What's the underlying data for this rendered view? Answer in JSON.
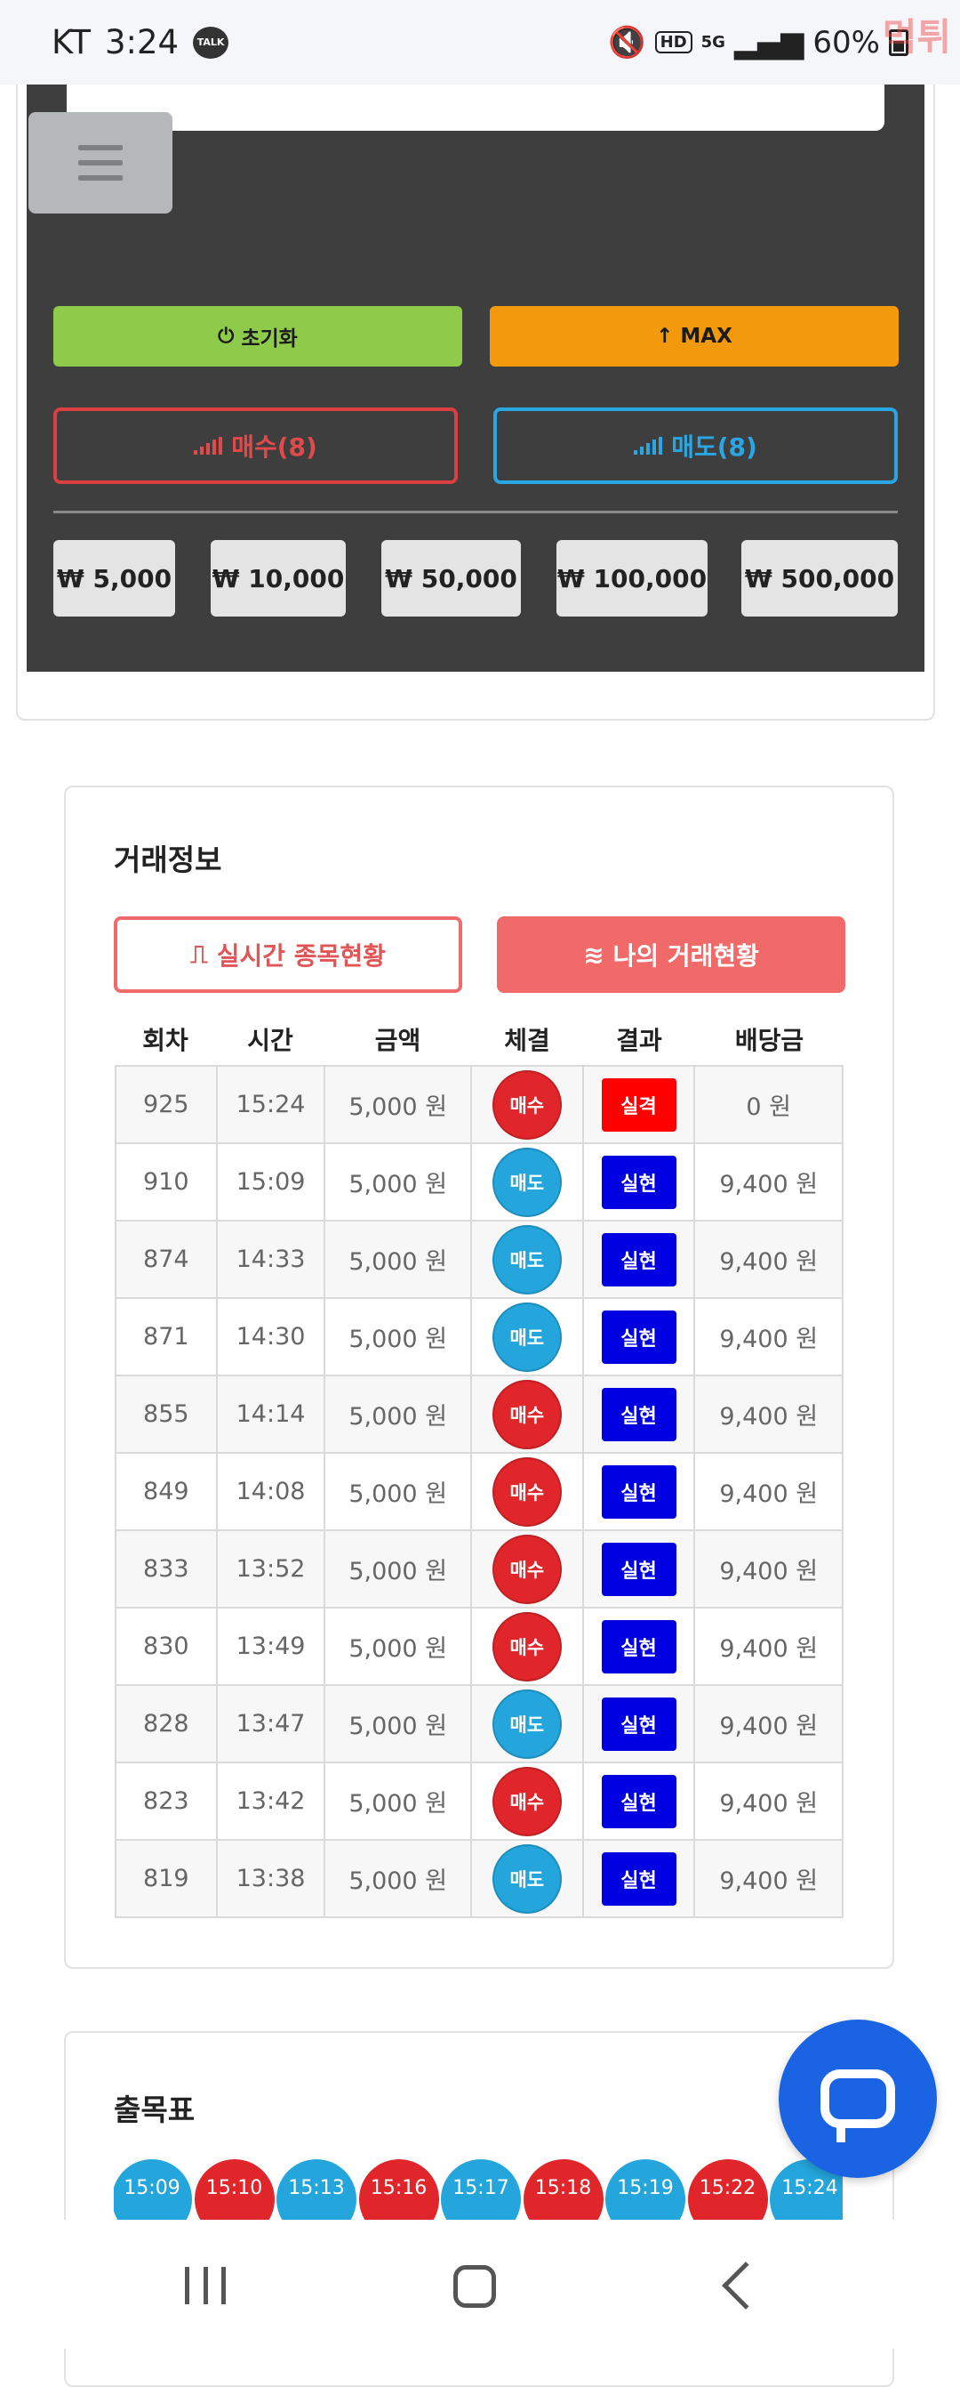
{
  "status_bar": {
    "carrier": "KT",
    "time": "3:24",
    "talk_badge": "TALK",
    "hd": "HD",
    "network": "5G",
    "battery": "60%",
    "watermark": "먹튀"
  },
  "controls": {
    "reset_label": "초기화",
    "max_label": "MAX",
    "buy_label": "매수(8)",
    "sell_label": "매도(8)",
    "amounts": [
      "₩ 5,000",
      "₩ 10,000",
      "₩ 50,000",
      "₩ 100,000",
      "₩ 500,000"
    ]
  },
  "trade_info": {
    "title": "거래정보",
    "tab_live": "실시간 종목현황",
    "tab_mine": "나의 거래현황",
    "columns": [
      "회차",
      "시간",
      "금액",
      "체결",
      "결과",
      "배당금"
    ],
    "rows": [
      {
        "round": "925",
        "time": "15:24",
        "amount": "5,000 원",
        "side": "매수",
        "result": "실격",
        "payout": "0 원"
      },
      {
        "round": "910",
        "time": "15:09",
        "amount": "5,000 원",
        "side": "매도",
        "result": "실현",
        "payout": "9,400 원"
      },
      {
        "round": "874",
        "time": "14:33",
        "amount": "5,000 원",
        "side": "매도",
        "result": "실현",
        "payout": "9,400 원"
      },
      {
        "round": "871",
        "time": "14:30",
        "amount": "5,000 원",
        "side": "매도",
        "result": "실현",
        "payout": "9,400 원"
      },
      {
        "round": "855",
        "time": "14:14",
        "amount": "5,000 원",
        "side": "매수",
        "result": "실현",
        "payout": "9,400 원"
      },
      {
        "round": "849",
        "time": "14:08",
        "amount": "5,000 원",
        "side": "매수",
        "result": "실현",
        "payout": "9,400 원"
      },
      {
        "round": "833",
        "time": "13:52",
        "amount": "5,000 원",
        "side": "매수",
        "result": "실현",
        "payout": "9,400 원"
      },
      {
        "round": "830",
        "time": "13:49",
        "amount": "5,000 원",
        "side": "매수",
        "result": "실현",
        "payout": "9,400 원"
      },
      {
        "round": "828",
        "time": "13:47",
        "amount": "5,000 원",
        "side": "매도",
        "result": "실현",
        "payout": "9,400 원"
      },
      {
        "round": "823",
        "time": "13:42",
        "amount": "5,000 원",
        "side": "매수",
        "result": "실현",
        "payout": "9,400 원"
      },
      {
        "round": "819",
        "time": "13:38",
        "amount": "5,000 원",
        "side": "매도",
        "result": "실현",
        "payout": "9,400 원"
      }
    ]
  },
  "results_chart": {
    "title": "출목표",
    "items": [
      {
        "time": "15:09",
        "side": "sell"
      },
      {
        "time": "15:10",
        "side": "buy"
      },
      {
        "time": "15:13",
        "side": "sell"
      },
      {
        "time": "15:16",
        "side": "buy"
      },
      {
        "time": "15:17",
        "side": "sell"
      },
      {
        "time": "15:18",
        "side": "buy"
      },
      {
        "time": "15:19",
        "side": "sell"
      },
      {
        "time": "15:22",
        "side": "buy"
      },
      {
        "time": "15:24",
        "side": "sell"
      }
    ]
  },
  "colors": {
    "buy": "#e0262a",
    "sell": "#24a6dc",
    "fail": "#ff0000",
    "realized": "#0000e0",
    "reset": "#8fcb4a",
    "max": "#f29a0c",
    "accent_red": "#f06a6a",
    "chat": "#1a64e4"
  }
}
